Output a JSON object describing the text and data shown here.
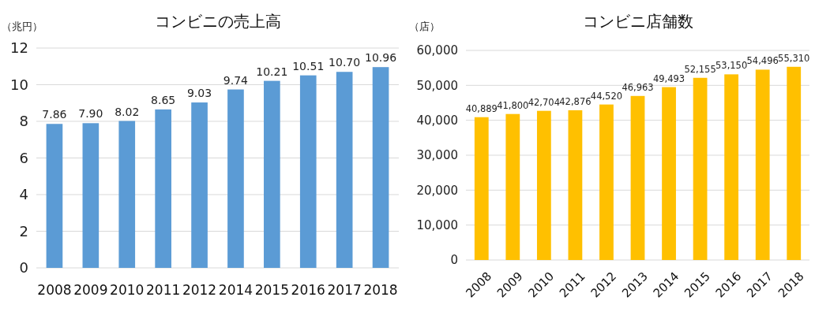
{
  "chart_data": [
    {
      "type": "bar",
      "title": "コンビニの売上高",
      "ylabel": "（兆円）",
      "categories": [
        "2008",
        "2009",
        "2010",
        "2011",
        "2012",
        "2014",
        "2015",
        "2016",
        "2017",
        "2018"
      ],
      "series": [
        {
          "color": "#5b9bd5",
          "values": [
            7.86,
            7.9,
            8.02,
            8.65,
            9.03,
            9.74,
            10.21,
            10.51,
            10.7,
            10.96
          ],
          "value_labels": [
            "7.86",
            "7.90",
            "8.02",
            "8.65",
            "9.03",
            "9.74",
            "10.21",
            "10.51",
            "10.70",
            "10.96"
          ]
        }
      ],
      "ylim": [
        0,
        12
      ],
      "yticks": [
        0,
        2,
        4,
        6,
        8,
        10,
        12
      ],
      "grid": "y"
    },
    {
      "type": "bar",
      "title": "コンビニ店舗数",
      "ylabel": "（店）",
      "categories": [
        "2008",
        "2009",
        "2010",
        "2011",
        "2012",
        "2013",
        "2014",
        "2015",
        "2016",
        "2017",
        "2018"
      ],
      "series": [
        {
          "color": "#ffc000",
          "values": [
            40889,
            41800,
            42704,
            42876,
            44520,
            46963,
            49493,
            52155,
            53150,
            54496,
            55310
          ],
          "value_labels": [
            "40,889",
            "41,800",
            "42,704",
            "42,876",
            "44,520",
            "46,963",
            "49,493",
            "52,155",
            "53,150",
            "54,496",
            "55,310"
          ]
        }
      ],
      "ylim": [
        0,
        60000
      ],
      "yticks": [
        {
          "value": 0,
          "label": "0"
        },
        {
          "value": 10000,
          "label": "10,000"
        },
        {
          "value": 20000,
          "label": "20,000"
        },
        {
          "value": 30000,
          "label": "30,000"
        },
        {
          "value": 40000,
          "label": "40,000"
        },
        {
          "value": 50000,
          "label": "50,000"
        },
        {
          "value": 60000,
          "label": "60,000"
        }
      ],
      "grid": "y"
    }
  ]
}
